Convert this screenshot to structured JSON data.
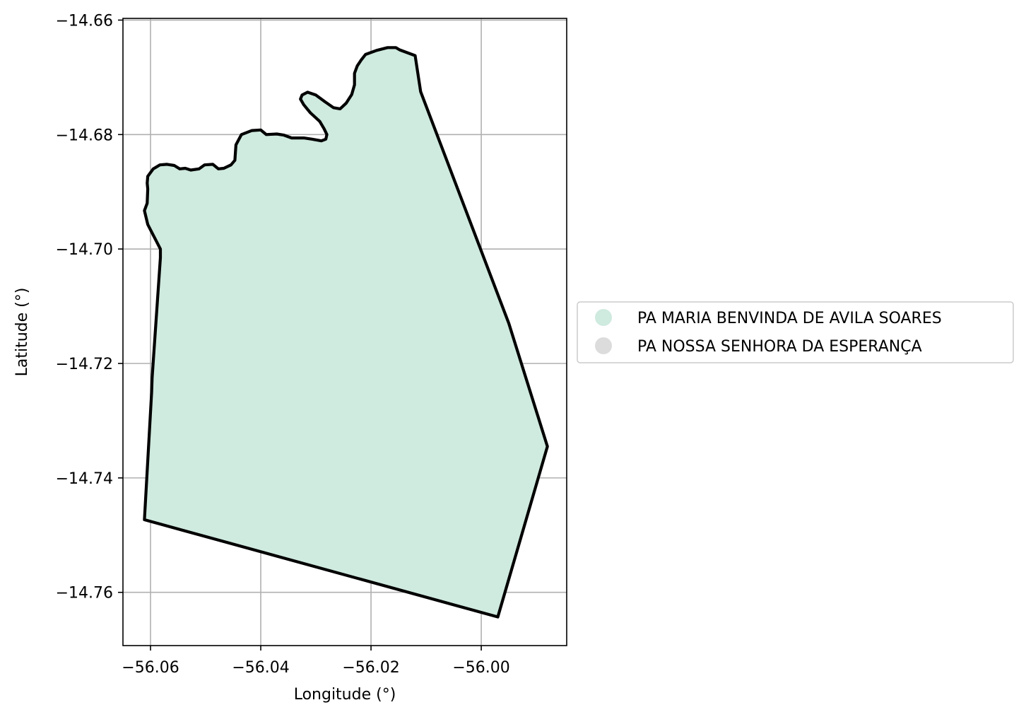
{
  "chart_data": {
    "type": "map",
    "xlabel": "Longitude (°)",
    "ylabel": "Latitude (°)",
    "xlim": [
      -56.065,
      -55.9845
    ],
    "ylim": [
      -14.7693,
      -14.6597
    ],
    "xticks": [
      -56.06,
      -56.04,
      -56.02,
      -56.0
    ],
    "xtick_labels": [
      "−56.06",
      "−56.04",
      "−56.02",
      "−56.00"
    ],
    "yticks": [
      -14.66,
      -14.68,
      -14.7,
      -14.72,
      -14.74,
      -14.76
    ],
    "ytick_labels": [
      "−14.66",
      "−14.68",
      "−14.70",
      "−14.72",
      "−14.74",
      "−14.76"
    ],
    "grid": true,
    "legend_position": "right-center",
    "legend": [
      {
        "label": "PA MARIA BENVINDA DE AVILA SOARES",
        "color": "#cfeadf"
      },
      {
        "label": "PA NOSSA SENHORA DA ESPERANÇA",
        "color": "#dcdcdc"
      }
    ],
    "polygon": {
      "name": "PA MARIA BENVINDA DE AVILA SOARES",
      "fill": "#cfeadf",
      "edge": "#000000",
      "coords": [
        [
          -56.0611,
          -14.7473
        ],
        [
          -56.0598,
          -14.725
        ],
        [
          -56.0597,
          -14.7225
        ],
        [
          -56.0582,
          -14.7015
        ],
        [
          -56.0582,
          -14.7
        ],
        [
          -56.0605,
          -14.6957
        ],
        [
          -56.0611,
          -14.6933
        ],
        [
          -56.0606,
          -14.692
        ],
        [
          -56.0605,
          -14.6895
        ],
        [
          -56.0606,
          -14.6885
        ],
        [
          -56.0605,
          -14.6873
        ],
        [
          -56.0595,
          -14.686
        ],
        [
          -56.0583,
          -14.6853
        ],
        [
          -56.057,
          -14.6852
        ],
        [
          -56.0557,
          -14.6854
        ],
        [
          -56.0547,
          -14.686
        ],
        [
          -56.0537,
          -14.6859
        ],
        [
          -56.0527,
          -14.6862
        ],
        [
          -56.0512,
          -14.686
        ],
        [
          -56.0502,
          -14.6853
        ],
        [
          -56.0487,
          -14.6852
        ],
        [
          -56.0477,
          -14.686
        ],
        [
          -56.0467,
          -14.6859
        ],
        [
          -56.0454,
          -14.6853
        ],
        [
          -56.0447,
          -14.6845
        ],
        [
          -56.0445,
          -14.6818
        ],
        [
          -56.0435,
          -14.68
        ],
        [
          -56.0416,
          -14.6793
        ],
        [
          -56.04,
          -14.6792
        ],
        [
          -56.039,
          -14.68
        ],
        [
          -56.0371,
          -14.6799
        ],
        [
          -56.0358,
          -14.6801
        ],
        [
          -56.0344,
          -14.6806
        ],
        [
          -56.0322,
          -14.6806
        ],
        [
          -56.0307,
          -14.6808
        ],
        [
          -56.029,
          -14.6811
        ],
        [
          -56.0282,
          -14.6808
        ],
        [
          -56.028,
          -14.68
        ],
        [
          -56.0285,
          -14.679
        ],
        [
          -56.0293,
          -14.6777
        ],
        [
          -56.031,
          -14.6762
        ],
        [
          -56.0322,
          -14.6748
        ],
        [
          -56.0328,
          -14.6738
        ],
        [
          -56.0325,
          -14.6731
        ],
        [
          -56.0315,
          -14.6726
        ],
        [
          -56.03,
          -14.6731
        ],
        [
          -56.0283,
          -14.6743
        ],
        [
          -56.0268,
          -14.6753
        ],
        [
          -56.0256,
          -14.6755
        ],
        [
          -56.0245,
          -14.6745
        ],
        [
          -56.0235,
          -14.673
        ],
        [
          -56.023,
          -14.6713
        ],
        [
          -56.023,
          -14.6693
        ],
        [
          -56.0225,
          -14.668
        ],
        [
          -56.0218,
          -14.667
        ],
        [
          -56.021,
          -14.666
        ],
        [
          -56.019,
          -14.6653
        ],
        [
          -56.017,
          -14.6648
        ],
        [
          -56.0155,
          -14.6648
        ],
        [
          -56.0148,
          -14.6652
        ],
        [
          -56.012,
          -14.6662
        ],
        [
          -56.011,
          -14.6725
        ],
        [
          -55.995,
          -14.713
        ],
        [
          -55.988,
          -14.7345
        ],
        [
          -55.997,
          -14.7643
        ],
        [
          -56.0611,
          -14.7473
        ]
      ]
    }
  }
}
